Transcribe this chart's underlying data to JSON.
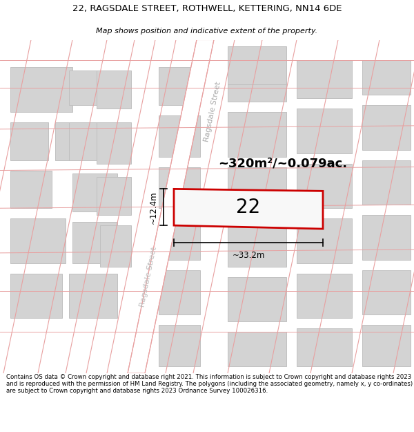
{
  "title_line1": "22, RAGSDALE STREET, ROTHWELL, KETTERING, NN14 6DE",
  "title_line2": "Map shows position and indicative extent of the property.",
  "footer_text": "Contains OS data © Crown copyright and database right 2021. This information is subject to Crown copyright and database rights 2023 and is reproduced with the permission of HM Land Registry. The polygons (including the associated geometry, namely x, y co-ordinates) are subject to Crown copyright and database rights 2023 Ordnance Survey 100026316.",
  "bg_color": "#ffffff",
  "building_fill": "#d3d3d3",
  "building_edge": "#c0c0c0",
  "road_color": "#e8a0a0",
  "highlight_edge": "#cc0000",
  "highlight_fill": "#f8f8f8",
  "area_label": "~320m²/~0.079ac.",
  "width_label": "~33.2m",
  "height_label": "~12.4m",
  "number_label": "22",
  "street_label": "Ragsdale Street"
}
